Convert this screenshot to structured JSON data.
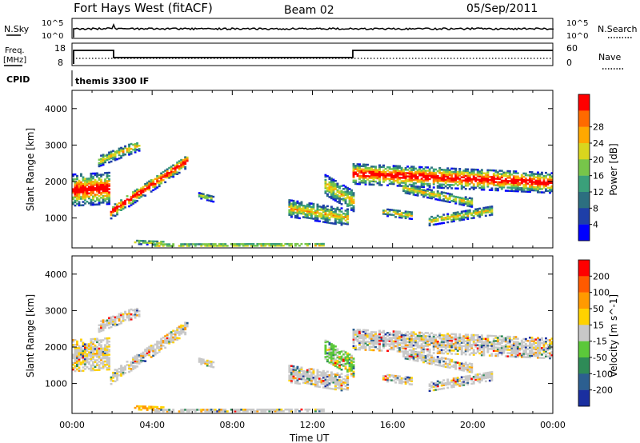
{
  "header": {
    "station": "Fort Hays West (fitACF)",
    "beam": "Beam 02",
    "date": "05/Sep/2011"
  },
  "top_panels": {
    "nsky_label": "N.Sky",
    "nsky_ticks": [
      "10^5",
      "10^0"
    ],
    "nsearch_label": "N.Search",
    "nsearch_ticks": [
      "10^5",
      "10^0"
    ],
    "freq_label_line1": "Freq.",
    "freq_label_line2": "[MHz]",
    "freq_ticks": [
      "18",
      "8"
    ],
    "nave_label": "Nave",
    "nave_ticks": [
      "60",
      "0"
    ],
    "cpid_label": "CPID",
    "cpid_text": "themis 3300 IF"
  },
  "chart_data": [
    {
      "type": "heatmap",
      "name": "power",
      "ylabel": "Slant Range [km]",
      "xlabel": "",
      "xticks": [
        "00:00",
        "04:00",
        "08:00",
        "12:00",
        "16:00",
        "20:00",
        "00:00"
      ],
      "yticks": [
        1000,
        2000,
        3000,
        4000
      ],
      "ylim": [
        180,
        4500
      ],
      "xlim_hours": [
        0,
        24
      ],
      "colorbar": {
        "label": "Power [dB]",
        "ticks": [
          "4",
          "8",
          "12",
          "16",
          "20",
          "24",
          "28"
        ],
        "range": [
          0,
          30
        ],
        "colors": [
          "#0000ff",
          "#1e3fa8",
          "#2c6f80",
          "#3aa07a",
          "#77c54a",
          "#d9d61e",
          "#ffa800",
          "#ff6a00",
          "#ff0000"
        ]
      },
      "echo_bands": [
        {
          "t": [
            0.0,
            1.9
          ],
          "center_km": [
            1750,
            1800
          ],
          "half_width_km": 430
        },
        {
          "t": [
            1.9,
            5.7
          ],
          "center_km": [
            1150,
            2550
          ],
          "half_width_km": 180
        },
        {
          "t": [
            1.3,
            3.4
          ],
          "center_km": [
            2550,
            3000
          ],
          "half_width_km": 150
        },
        {
          "t": [
            6.3,
            7.0
          ],
          "center_km": [
            1600,
            1500
          ],
          "half_width_km": 70
        },
        {
          "t": [
            3.1,
            4.5
          ],
          "center_km": [
            330,
            300
          ],
          "half_width_km": 60
        },
        {
          "t": [
            4.0,
            12.5
          ],
          "center_km": [
            230,
            240
          ],
          "half_width_km": 60
        },
        {
          "t": [
            10.8,
            13.7
          ],
          "center_km": [
            1250,
            1000
          ],
          "half_width_km": 230
        },
        {
          "t": [
            12.6,
            14.0
          ],
          "center_km": [
            1900,
            1450
          ],
          "half_width_km": 280
        },
        {
          "t": [
            14.0,
            24.0
          ],
          "center_km": [
            2200,
            1950
          ],
          "half_width_km": 280
        },
        {
          "t": [
            16.5,
            20.0
          ],
          "center_km": [
            1800,
            1400
          ],
          "half_width_km": 120
        },
        {
          "t": [
            17.8,
            21.0
          ],
          "center_km": [
            900,
            1200
          ],
          "half_width_km": 120
        },
        {
          "t": [
            15.5,
            17.0
          ],
          "center_km": [
            1150,
            1050
          ],
          "half_width_km": 100
        }
      ]
    },
    {
      "type": "heatmap",
      "name": "velocity",
      "ylabel": "Slant Range [km]",
      "xlabel": "Time UT",
      "xticks": [
        "00:00",
        "04:00",
        "08:00",
        "12:00",
        "16:00",
        "20:00",
        "00:00"
      ],
      "yticks": [
        1000,
        2000,
        3000,
        4000
      ],
      "ylim": [
        180,
        4500
      ],
      "xlim_hours": [
        0,
        24
      ],
      "colorbar": {
        "label": "Velocity [m s^-1]",
        "ticks": [
          "200",
          "100",
          "50",
          "15",
          "-15",
          "-50",
          "-100",
          "-200"
        ],
        "colors": [
          "#1a2fa0",
          "#2c5f90",
          "#2e8b57",
          "#5bc83a",
          "#c8c8c8",
          "#ffd200",
          "#ff9a00",
          "#ff5a00",
          "#ff0000"
        ]
      }
    }
  ]
}
